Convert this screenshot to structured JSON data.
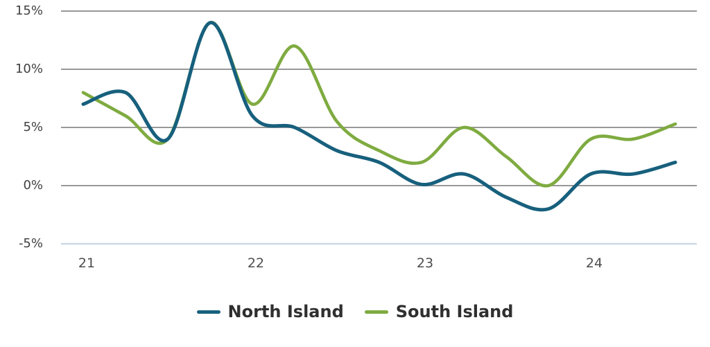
{
  "chart_data": {
    "type": "line",
    "title": "",
    "xlabel": "",
    "ylabel": "",
    "x": [
      21,
      21.25,
      21.5,
      21.75,
      22,
      22.25,
      22.5,
      22.75,
      23,
      23.25,
      23.5,
      23.75,
      24,
      24.25,
      24.5
    ],
    "series": [
      {
        "name": "North Island",
        "color": "#17607d",
        "values": [
          7,
          8,
          4,
          14,
          6,
          5,
          3,
          2,
          0.1,
          1,
          -1,
          -2,
          1,
          1,
          2
        ]
      },
      {
        "name": "South Island",
        "color": "#7fab40",
        "values": [
          8,
          6,
          4,
          14,
          7,
          12,
          5.5,
          3,
          2,
          5,
          2.5,
          0,
          4,
          4,
          5.3
        ]
      }
    ],
    "xticks": [
      {
        "label": "21",
        "value": 21
      },
      {
        "label": "22",
        "value": 22
      },
      {
        "label": "23",
        "value": 23
      },
      {
        "label": "24",
        "value": 24
      }
    ],
    "yticks": [
      {
        "label": "15%",
        "value": 15
      },
      {
        "label": "10%",
        "value": 10
      },
      {
        "label": "5%",
        "value": 5
      },
      {
        "label": "0%",
        "value": 0
      },
      {
        "label": "-5%",
        "value": -5
      }
    ],
    "ylim": [
      -5,
      15
    ],
    "x_range": [
      21,
      24.5
    ],
    "grid": "horizontal",
    "legend_position": "bottom-center",
    "gridline_color": "#8a8a8a",
    "baseline_gridline_color": "#cbdae3",
    "background_color": "#ffffff"
  }
}
